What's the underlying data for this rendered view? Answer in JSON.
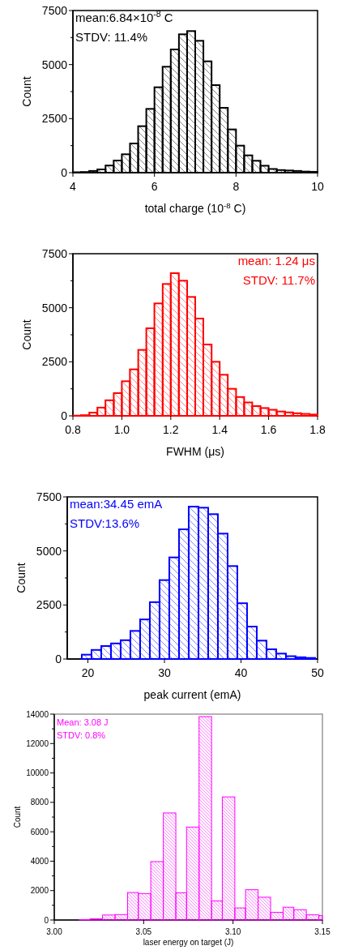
{
  "chart_data": [
    {
      "type": "histogram",
      "xlabel": "total charge (10$^{-8}$ C)",
      "ylabel": "Count",
      "color": "#000000",
      "annotations": [
        "mean:6.84×10$^{-8}$ C",
        "STDV: 11.4%"
      ],
      "bins": [
        4,
        4.2,
        4.4,
        4.6,
        4.8,
        5,
        5.2,
        5.4,
        5.6,
        5.8,
        6,
        6.2,
        6.4,
        6.6,
        6.8,
        7,
        7.2,
        7.4,
        7.6,
        7.8,
        8,
        8.2,
        8.4,
        8.6,
        8.8,
        9,
        9.2,
        9.4,
        9.6,
        9.8,
        10
      ],
      "values": [
        20,
        30,
        80,
        150,
        330,
        560,
        850,
        1350,
        2150,
        2950,
        3950,
        4900,
        5700,
        6400,
        6550,
        6100,
        5150,
        4050,
        3000,
        2000,
        1250,
        800,
        550,
        320,
        170,
        120,
        100,
        80,
        50,
        40
      ],
      "xlim": [
        4,
        10
      ],
      "ylim": [
        0,
        7500
      ],
      "xticks": [
        4,
        6,
        8,
        10
      ],
      "yticks": [
        0,
        2500,
        5000,
        7500
      ]
    },
    {
      "type": "histogram",
      "xlabel": "FWHM (μs)",
      "ylabel": "Count",
      "color": "#ff0000",
      "annotations": [
        "mean: 1.24 μs",
        "STDV: 11.7%"
      ],
      "bins": [
        0.8,
        0.833,
        0.867,
        0.9,
        0.933,
        0.967,
        1,
        1.033,
        1.067,
        1.1,
        1.133,
        1.167,
        1.2,
        1.233,
        1.267,
        1.3,
        1.333,
        1.367,
        1.4,
        1.433,
        1.467,
        1.5,
        1.533,
        1.567,
        1.6,
        1.633,
        1.667,
        1.7,
        1.733,
        1.767,
        1.8
      ],
      "values": [
        10,
        30,
        150,
        380,
        720,
        1050,
        1600,
        2150,
        3050,
        4050,
        5200,
        6100,
        6600,
        6250,
        5500,
        4500,
        3300,
        2500,
        1900,
        1250,
        870,
        620,
        450,
        360,
        280,
        200,
        160,
        120,
        90,
        60
      ],
      "xlim": [
        0.8,
        1.8
      ],
      "ylim": [
        0,
        7500
      ],
      "xticks": [
        0.8,
        {
          "value": 1,
          "label": "1.0"
        },
        1.2,
        1.4,
        1.6,
        1.8
      ],
      "yticks": [
        0,
        2500,
        5000,
        7500
      ]
    },
    {
      "type": "histogram",
      "xlabel": "peak current (emA)",
      "ylabel": "Count",
      "color": "#0000ff",
      "annotations": [
        "mean:34.45 emA",
        "STDV:13.6%"
      ],
      "bins": [
        19.2,
        20.47,
        21.74,
        23.01,
        24.28,
        25.55,
        26.82,
        28.09,
        29.36,
        30.63,
        31.9,
        33.17,
        34.44,
        35.71,
        36.98,
        38.25,
        39.52,
        40.79,
        42.06,
        43.33,
        44.6,
        45.87,
        47.14,
        48.41,
        49.68
      ],
      "values": [
        200,
        420,
        600,
        720,
        870,
        1300,
        1830,
        2630,
        3650,
        4700,
        6000,
        7050,
        7000,
        6700,
        5800,
        4300,
        2580,
        1500,
        850,
        450,
        250,
        130,
        80,
        50
      ],
      "xlim": [
        17.3,
        50
      ],
      "ylim": [
        0,
        7500
      ],
      "xticks": [
        20,
        30,
        40,
        50
      ],
      "yticks": [
        0,
        2500,
        5000,
        7500
      ]
    },
    {
      "type": "histogram",
      "xlabel": "laser energy on target (J)",
      "ylabel": "Count",
      "color": "#ff00ff",
      "annotations": [
        "Mean: 3.08 J",
        "STDV: 0.8%"
      ],
      "bins": [
        3.014,
        3.02,
        3.027,
        3.034,
        3.041,
        3.047,
        3.054,
        3.061,
        3.068,
        3.074,
        3.081,
        3.088,
        3.094,
        3.101,
        3.107,
        3.114,
        3.121,
        3.128,
        3.134,
        3.141,
        3.148,
        3.15
      ],
      "values": [
        30,
        80,
        340,
        370,
        1870,
        1800,
        3970,
        7280,
        1850,
        6320,
        13830,
        1300,
        8370,
        820,
        2060,
        1550,
        520,
        870,
        700,
        350,
        300
      ],
      "xlim": [
        3,
        3.15
      ],
      "ylim": [
        0,
        14000
      ],
      "xticks": [
        {
          "value": 3,
          "label": "3.00"
        },
        {
          "value": 3.05,
          "label": "3.05"
        },
        {
          "value": 3.1,
          "label": "3.10"
        },
        {
          "value": 3.15,
          "label": "3.15"
        }
      ],
      "yticks": [
        0,
        2000,
        4000,
        6000,
        8000,
        10000,
        12000,
        14000
      ]
    }
  ]
}
